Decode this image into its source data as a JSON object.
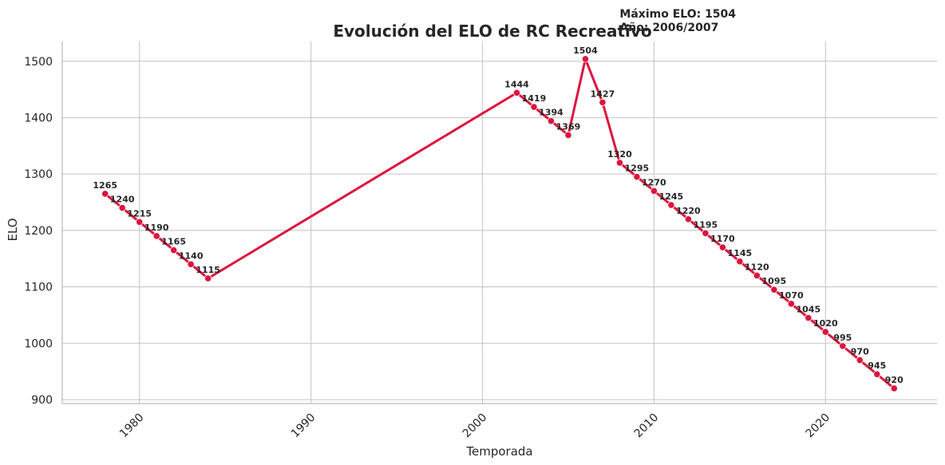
{
  "chart_data": {
    "type": "line",
    "title": "Evolución del ELO de RC Recreativo",
    "xlabel": "Temporada",
    "ylabel": "ELO",
    "xlim": [
      1975.5,
      2026.5
    ],
    "ylim": [
      893,
      1535
    ],
    "xticks": [
      1980,
      1990,
      2000,
      2010,
      2020
    ],
    "yticks": [
      900,
      1000,
      1100,
      1200,
      1300,
      1400,
      1500
    ],
    "grid": true,
    "color": "#dc143c",
    "annotation": {
      "line1": "Máximo ELO: 1504",
      "line2": "Año: 2006/2007",
      "x": 2008,
      "y": 1504
    },
    "series": [
      {
        "points": [
          {
            "x": 1978,
            "y": 1265
          },
          {
            "x": 1979,
            "y": 1240
          },
          {
            "x": 1980,
            "y": 1215
          },
          {
            "x": 1981,
            "y": 1190
          },
          {
            "x": 1982,
            "y": 1165
          },
          {
            "x": 1983,
            "y": 1140
          },
          {
            "x": 1984,
            "y": 1115
          },
          {
            "x": 2002,
            "y": 1444
          },
          {
            "x": 2003,
            "y": 1419
          },
          {
            "x": 2004,
            "y": 1394
          },
          {
            "x": 2005,
            "y": 1369
          },
          {
            "x": 2006,
            "y": 1504
          },
          {
            "x": 2007,
            "y": 1427
          },
          {
            "x": 2008,
            "y": 1320
          },
          {
            "x": 2009,
            "y": 1295
          },
          {
            "x": 2010,
            "y": 1270
          },
          {
            "x": 2011,
            "y": 1245
          },
          {
            "x": 2012,
            "y": 1220
          },
          {
            "x": 2013,
            "y": 1195
          },
          {
            "x": 2014,
            "y": 1170
          },
          {
            "x": 2015,
            "y": 1145
          },
          {
            "x": 2016,
            "y": 1120
          },
          {
            "x": 2017,
            "y": 1095
          },
          {
            "x": 2018,
            "y": 1070
          },
          {
            "x": 2019,
            "y": 1045
          },
          {
            "x": 2020,
            "y": 1020
          },
          {
            "x": 2021,
            "y": 995
          },
          {
            "x": 2022,
            "y": 970
          },
          {
            "x": 2023,
            "y": 945
          },
          {
            "x": 2024,
            "y": 920
          }
        ]
      }
    ]
  }
}
